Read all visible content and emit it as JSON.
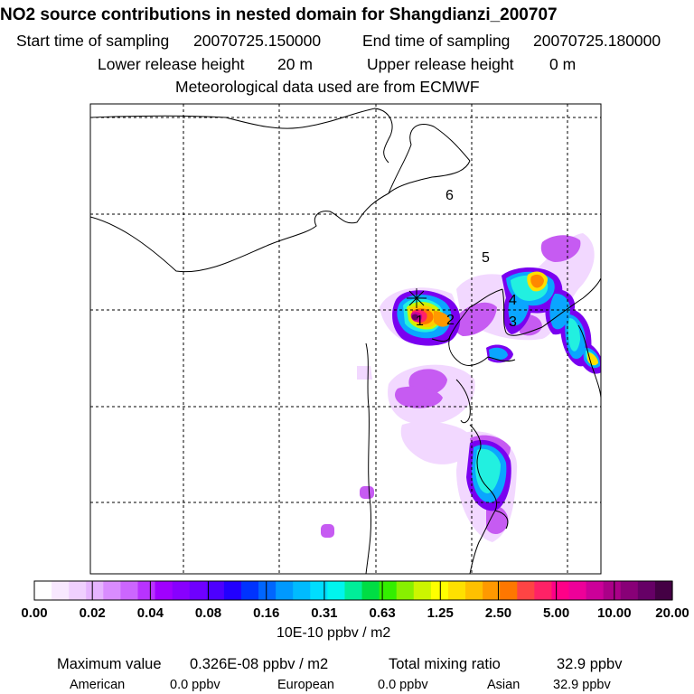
{
  "header": {
    "title": "NO2 source contributions in nested domain for Shangdianzi_200707",
    "start_label": "Start time of sampling",
    "start_value": "20070725.150000",
    "end_label": "End time of sampling",
    "end_value": "20070725.180000",
    "lower_label": "Lower release height",
    "lower_value": "20 m",
    "upper_label": "Upper release height",
    "upper_value": "0 m",
    "met_note": "Meteorological data used are from ECMWF"
  },
  "chart_data": {
    "type": "heatmap",
    "title": "NO2 source contributions in nested domain for Shangdianzi_200707",
    "map_labels": [
      "1",
      "2",
      "3",
      "4",
      "5",
      "6"
    ],
    "receptor_marker": "asterisk",
    "gridlines": "dashed",
    "colorbar": {
      "tick_labels": [
        "0.00",
        "0.02",
        "0.04",
        "0.08",
        "0.16",
        "0.31",
        "0.63",
        "1.25",
        "2.50",
        "5.00",
        "10.00",
        "20.00"
      ],
      "tick_values": [
        0.0,
        0.02,
        0.04,
        0.08,
        0.16,
        0.31,
        0.63,
        1.25,
        2.5,
        5.0,
        10.0,
        20.0
      ],
      "unit_label": "10E-10 ppbv / m2",
      "colors": [
        "#ffffff",
        "#f8e8ff",
        "#f0d0ff",
        "#e6b4ff",
        "#d98cff",
        "#cc66ff",
        "#b833ff",
        "#a000ff",
        "#8800ff",
        "#6f00ff",
        "#4d00ff",
        "#2200ff",
        "#0033ff",
        "#0066ff",
        "#0099ff",
        "#00bbff",
        "#00ddff",
        "#00f5ee",
        "#00ee99",
        "#00dd44",
        "#33ee00",
        "#88f000",
        "#ccf500",
        "#ffff00",
        "#ffe000",
        "#ffc000",
        "#ff9900",
        "#ff7700",
        "#ff4444",
        "#ff2266",
        "#ff0088",
        "#ee0099",
        "#cc0099",
        "#aa0088",
        "#880077",
        "#660066",
        "#440044"
      ]
    }
  },
  "footer": {
    "max_label": "Maximum value",
    "max_value": "0.326E-08 ppbv / m2",
    "total_label": "Total mixing ratio",
    "total_value": "32.9 ppbv",
    "american_label": "American",
    "american_value": "0.0 ppbv",
    "european_label": "European",
    "european_value": "0.0 ppbv",
    "asian_label": "Asian",
    "asian_value": "32.9 ppbv"
  }
}
